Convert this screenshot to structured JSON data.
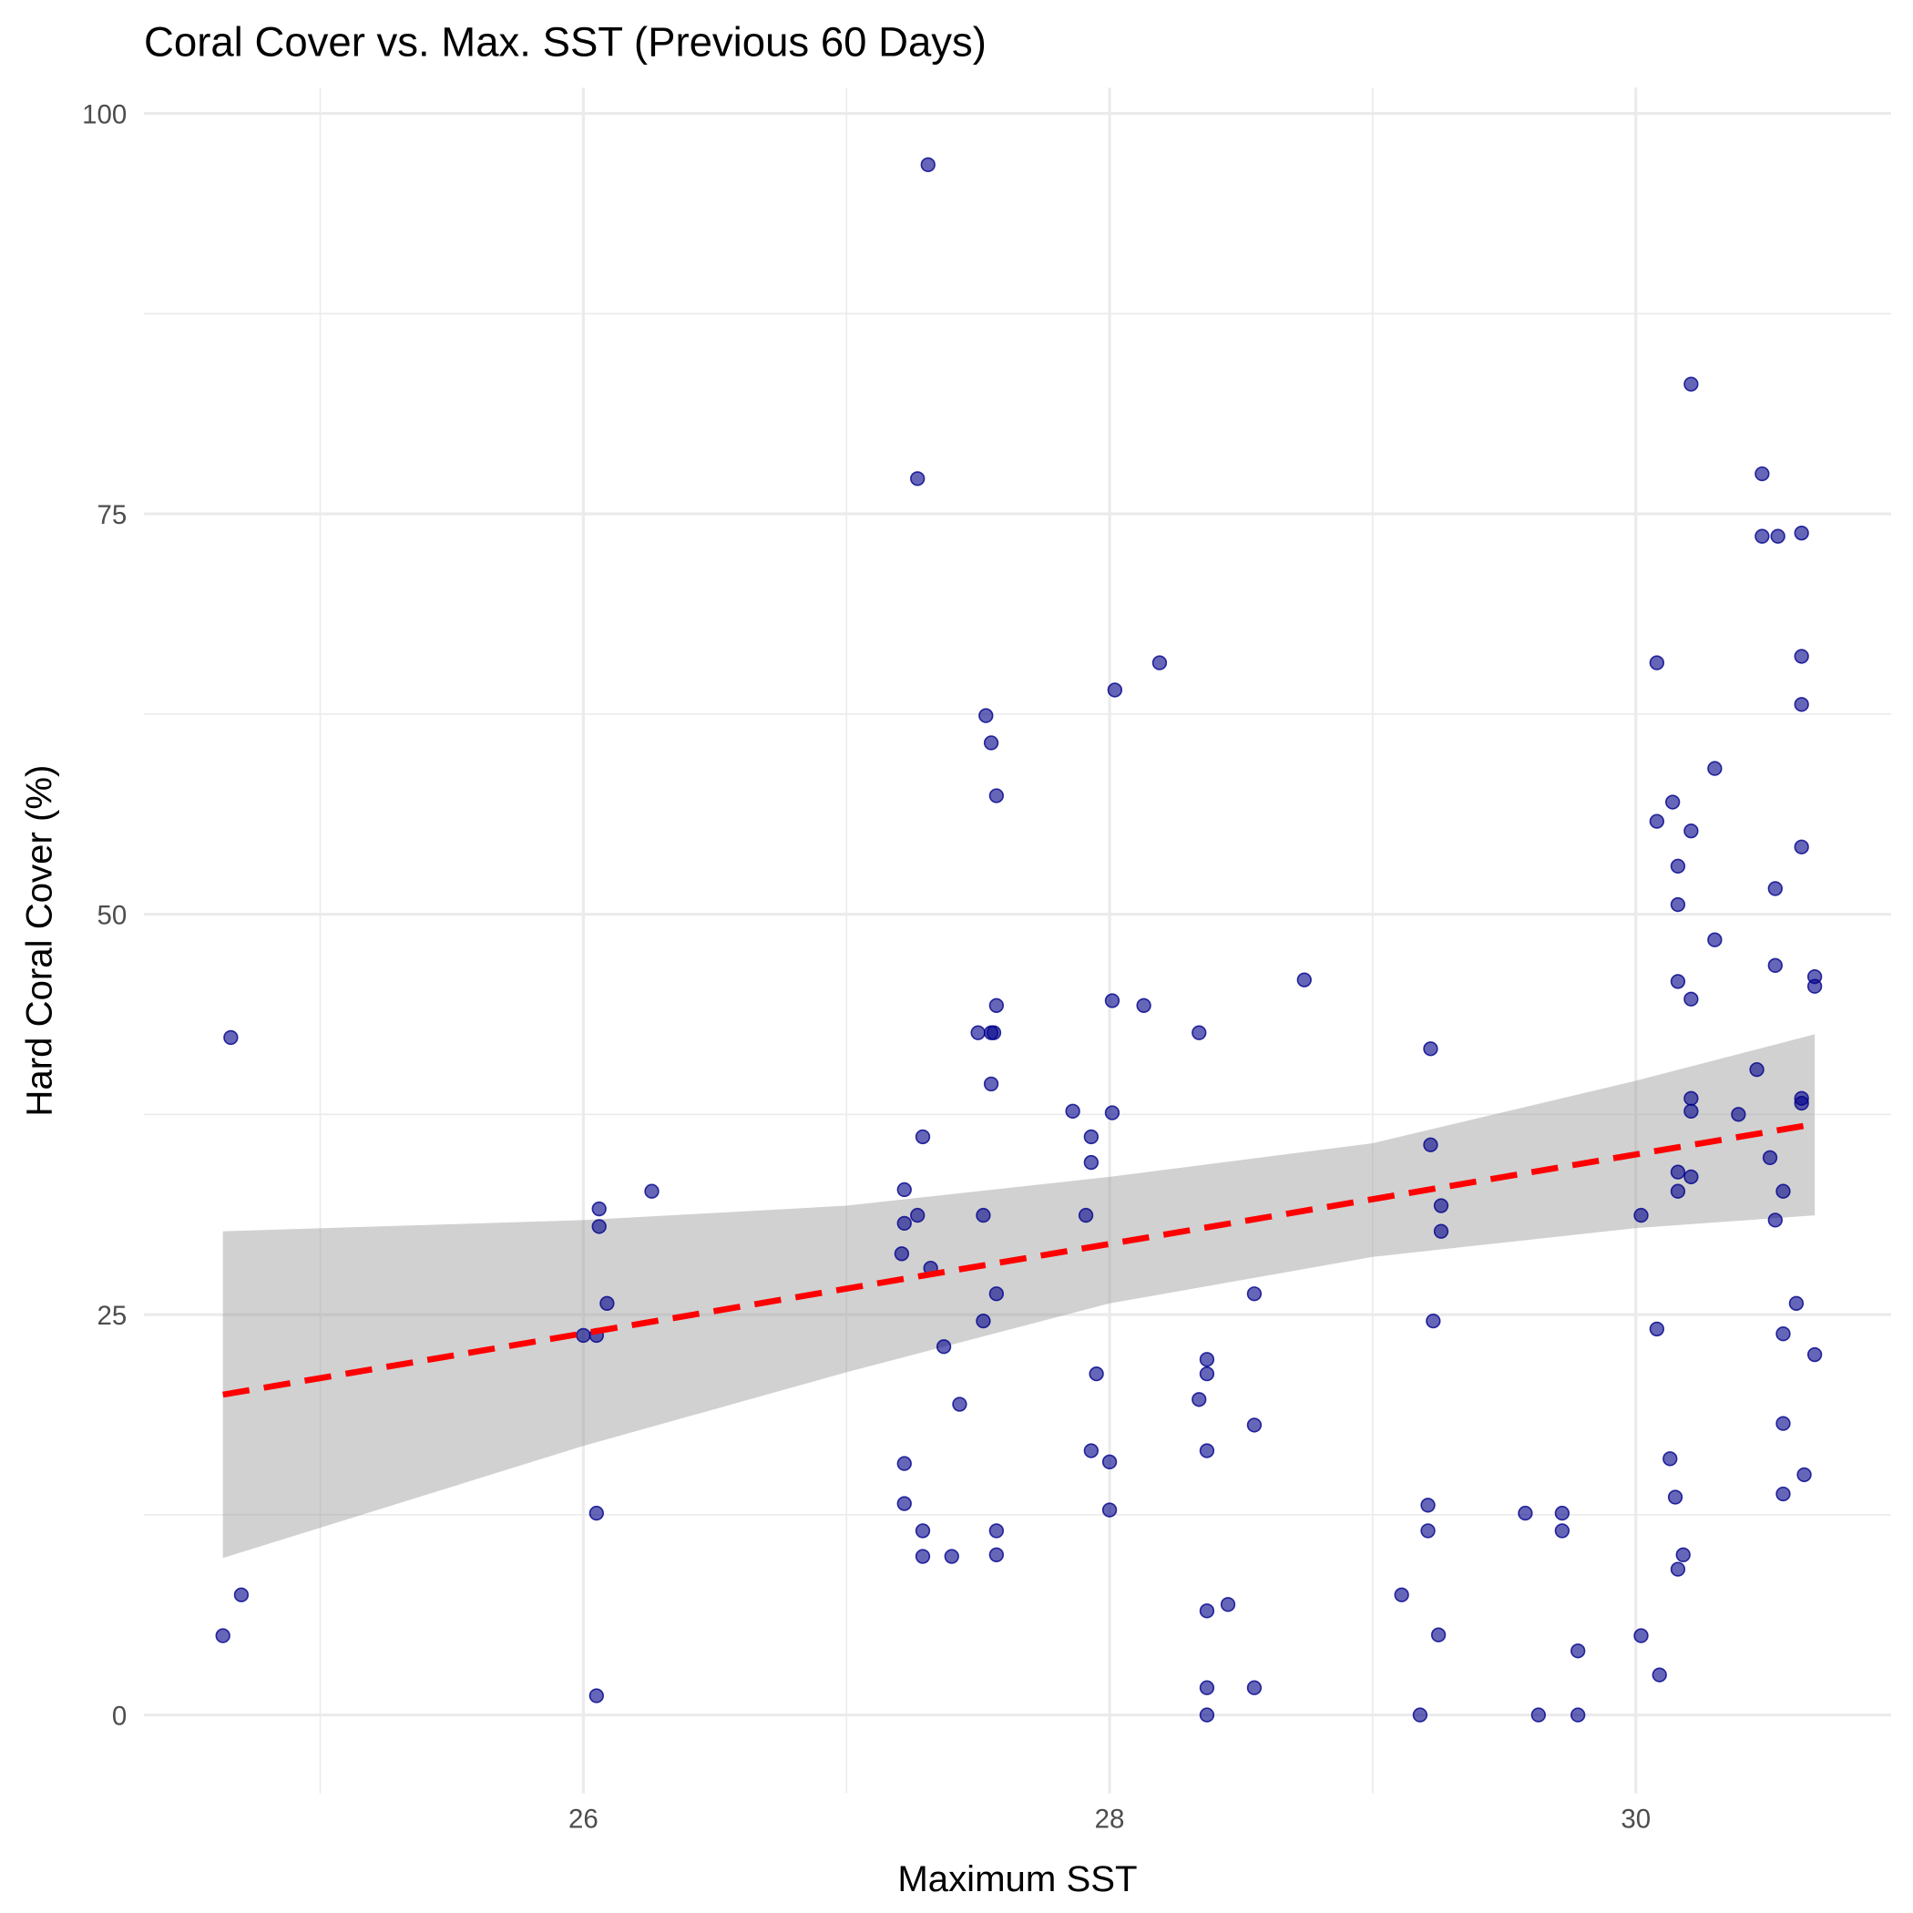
{
  "chart_data": {
    "type": "scatter",
    "title": "Coral Cover vs. Max. SST (Previous 60 Days)",
    "xlabel": "Maximum SST",
    "ylabel": "Hard Coral Cover (%)",
    "xlim": [
      24.33,
      30.97
    ],
    "ylim": [
      -4.9,
      101.6
    ],
    "x_ticks": [
      26,
      28,
      30
    ],
    "x_tick_labels": [
      "26",
      "28",
      "30"
    ],
    "x_minor_ticks": [
      25,
      27,
      29
    ],
    "y_ticks": [
      0,
      25,
      50,
      75,
      100
    ],
    "y_tick_labels": [
      "0",
      "25",
      "50",
      "75",
      "100"
    ],
    "y_minor_ticks": [
      12.5,
      37.5,
      62.5,
      87.5
    ],
    "grid": true,
    "colors": {
      "points": "#00008b",
      "line": "#ff0000",
      "band": "#999999",
      "grid": "#ebebeb"
    },
    "points": [
      [
        24.63,
        4.95
      ],
      [
        24.66,
        42.3
      ],
      [
        24.7,
        7.5
      ],
      [
        26.0,
        23.7
      ],
      [
        26.05,
        23.7
      ],
      [
        26.06,
        31.6
      ],
      [
        26.06,
        30.5
      ],
      [
        26.09,
        25.7
      ],
      [
        26.05,
        12.6
      ],
      [
        26.05,
        1.2
      ],
      [
        26.26,
        32.7
      ],
      [
        27.22,
        32.8
      ],
      [
        27.22,
        30.7
      ],
      [
        27.21,
        28.8
      ],
      [
        27.27,
        31.2
      ],
      [
        27.29,
        36.1
      ],
      [
        27.32,
        27.9
      ],
      [
        27.22,
        15.7
      ],
      [
        27.22,
        13.2
      ],
      [
        27.29,
        11.5
      ],
      [
        27.29,
        9.9
      ],
      [
        27.4,
        9.9
      ],
      [
        27.37,
        23.0
      ],
      [
        27.43,
        19.4
      ],
      [
        27.31,
        96.8
      ],
      [
        27.27,
        77.2
      ],
      [
        27.53,
        62.4
      ],
      [
        27.55,
        60.7
      ],
      [
        27.57,
        57.4
      ],
      [
        27.5,
        42.6
      ],
      [
        27.55,
        42.6
      ],
      [
        27.56,
        42.6
      ],
      [
        27.57,
        44.3
      ],
      [
        27.55,
        39.4
      ],
      [
        27.52,
        31.2
      ],
      [
        27.57,
        26.3
      ],
      [
        27.52,
        24.6
      ],
      [
        27.57,
        11.5
      ],
      [
        27.57,
        10.0
      ],
      [
        27.86,
        37.7
      ],
      [
        27.93,
        36.1
      ],
      [
        27.93,
        34.5
      ],
      [
        27.91,
        31.2
      ],
      [
        27.95,
        21.3
      ],
      [
        27.93,
        16.5
      ],
      [
        28.0,
        15.8
      ],
      [
        28.0,
        12.8
      ],
      [
        28.01,
        37.6
      ],
      [
        28.01,
        44.6
      ],
      [
        28.02,
        64.0
      ],
      [
        28.13,
        44.3
      ],
      [
        28.19,
        65.7
      ],
      [
        28.34,
        42.6
      ],
      [
        28.37,
        22.2
      ],
      [
        28.37,
        21.3
      ],
      [
        28.34,
        19.7
      ],
      [
        28.37,
        16.5
      ],
      [
        28.37,
        6.5
      ],
      [
        28.37,
        1.7
      ],
      [
        28.37,
        0
      ],
      [
        28.45,
        6.9
      ],
      [
        28.55,
        26.3
      ],
      [
        28.55,
        18.1
      ],
      [
        28.55,
        1.7
      ],
      [
        28.74,
        45.9
      ],
      [
        29.22,
        41.6
      ],
      [
        29.22,
        35.6
      ],
      [
        29.26,
        31.8
      ],
      [
        29.26,
        30.2
      ],
      [
        29.23,
        24.6
      ],
      [
        29.21,
        13.1
      ],
      [
        29.21,
        11.5
      ],
      [
        29.11,
        7.5
      ],
      [
        29.25,
        5.0
      ],
      [
        29.18,
        0
      ],
      [
        29.58,
        12.6
      ],
      [
        29.72,
        12.6
      ],
      [
        29.72,
        11.5
      ],
      [
        29.63,
        0
      ],
      [
        29.78,
        4.0
      ],
      [
        29.78,
        0
      ],
      [
        30.02,
        31.2
      ],
      [
        30.02,
        4.95
      ],
      [
        30.08,
        65.7
      ],
      [
        30.08,
        55.8
      ],
      [
        30.08,
        24.1
      ],
      [
        30.09,
        2.5
      ],
      [
        30.13,
        16.0
      ],
      [
        30.15,
        13.6
      ],
      [
        30.16,
        9.1
      ],
      [
        30.18,
        10.0
      ],
      [
        30.16,
        45.8
      ],
      [
        30.16,
        50.6
      ],
      [
        30.16,
        53.0
      ],
      [
        30.16,
        33.9
      ],
      [
        30.16,
        32.7
      ],
      [
        30.21,
        83.1
      ],
      [
        30.21,
        55.2
      ],
      [
        30.21,
        44.7
      ],
      [
        30.21,
        38.5
      ],
      [
        30.21,
        37.7
      ],
      [
        30.21,
        33.6
      ],
      [
        30.14,
        57.0
      ],
      [
        30.3,
        59.1
      ],
      [
        30.3,
        48.4
      ],
      [
        30.39,
        37.5
      ],
      [
        30.46,
        40.3
      ],
      [
        30.48,
        77.5
      ],
      [
        30.48,
        73.6
      ],
      [
        30.54,
        73.6
      ],
      [
        30.51,
        34.8
      ],
      [
        30.53,
        51.6
      ],
      [
        30.53,
        46.8
      ],
      [
        30.53,
        30.9
      ],
      [
        30.56,
        32.7
      ],
      [
        30.56,
        23.8
      ],
      [
        30.56,
        18.2
      ],
      [
        30.56,
        13.8
      ],
      [
        30.61,
        25.7
      ],
      [
        30.63,
        73.8
      ],
      [
        30.63,
        66.1
      ],
      [
        30.63,
        63.1
      ],
      [
        30.63,
        54.2
      ],
      [
        30.63,
        38.5
      ],
      [
        30.63,
        38.2
      ],
      [
        30.64,
        15.0
      ],
      [
        30.68,
        46.1
      ],
      [
        30.68,
        45.5
      ],
      [
        30.68,
        22.5
      ]
    ],
    "trend_line": {
      "type": "linear",
      "style": "dashed",
      "x": [
        24.63,
        30.68
      ],
      "y": [
        20.0,
        36.9
      ]
    },
    "confidence_band": {
      "x": [
        24.63,
        26,
        27,
        28,
        29,
        30,
        30.68
      ],
      "lower": [
        9.8,
        16.8,
        21.4,
        25.7,
        28.6,
        30.4,
        31.2
      ],
      "upper": [
        30.2,
        30.9,
        31.8,
        33.6,
        35.7,
        39.6,
        42.5
      ]
    }
  }
}
